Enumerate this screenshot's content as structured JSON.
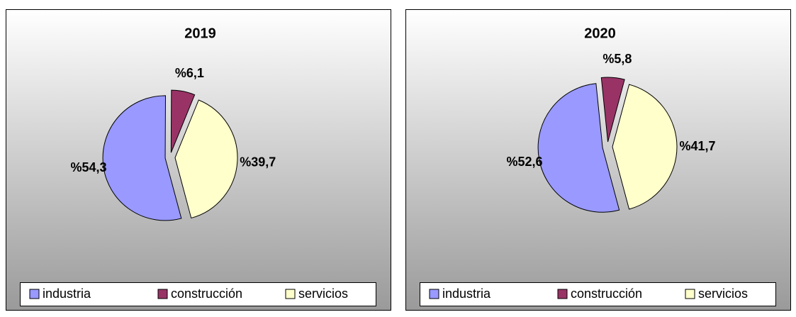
{
  "chart_data": [
    {
      "type": "pie",
      "title": "2019",
      "categories": [
        "industria",
        "construcción",
        "servicios"
      ],
      "values": [
        54.3,
        6.1,
        39.7
      ],
      "value_labels": [
        "%54,3",
        "%6,1",
        "%39,7"
      ],
      "colors": [
        "#9999ff",
        "#993366",
        "#ffffcc"
      ],
      "legend": "bottom"
    },
    {
      "type": "pie",
      "title": "2020",
      "categories": [
        "industria",
        "construcción",
        "servicios"
      ],
      "values": [
        52.6,
        5.8,
        41.7
      ],
      "value_labels": [
        "%52,6",
        "%5,8",
        "%41,7"
      ],
      "colors": [
        "#9999ff",
        "#993366",
        "#ffffcc"
      ],
      "legend": "bottom"
    }
  ]
}
